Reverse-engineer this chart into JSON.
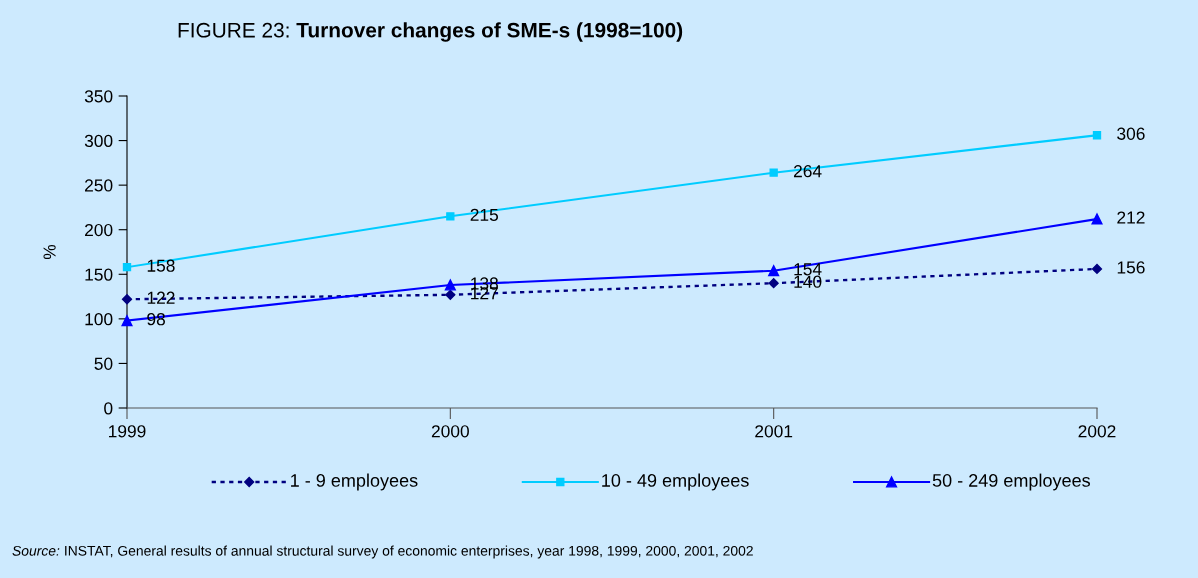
{
  "chart_data": {
    "type": "line",
    "title": "FIGURE 23: Turnover changes of SME-s (1998=100)",
    "ylabel": "%",
    "x": [
      1999,
      2000,
      2001,
      2002
    ],
    "xlim": [
      1999,
      2002
    ],
    "xticks": [
      1999,
      2000,
      2001,
      2002
    ],
    "ylim": [
      0,
      350
    ],
    "yticks": [
      0,
      50,
      100,
      150,
      200,
      250,
      300,
      350
    ],
    "series": [
      {
        "name": "1 - 9 employees",
        "color": "#000080",
        "values": [
          122,
          127,
          140,
          156
        ],
        "marker": "diamond",
        "line_style": "dotted"
      },
      {
        "name": "10 - 49 employees",
        "color": "#00ccff",
        "values": [
          158,
          215,
          264,
          306
        ],
        "marker": "square",
        "line_style": "solid"
      },
      {
        "name": "50 - 249 employees",
        "color": "#0000ff",
        "values": [
          98,
          138,
          154,
          212
        ],
        "marker": "triangle",
        "line_style": "solid"
      }
    ],
    "data_labels": true,
    "grid": false,
    "legend": "bottom",
    "annotations": [
      "Source: INSTAT, General results of annual structural survey of economic enterprises, year 1998, 1999, 2000, 2001, 2002"
    ]
  }
}
